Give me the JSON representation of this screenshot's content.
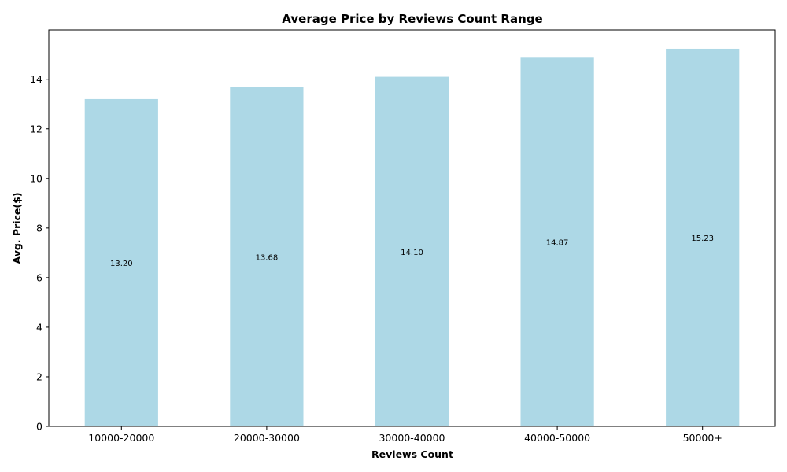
{
  "chart_data": {
    "type": "bar",
    "title": "Average Price by Reviews Count Range",
    "xlabel": "Reviews Count",
    "ylabel": "Avg. Price($)",
    "categories": [
      "10000-20000",
      "20000-30000",
      "30000-40000",
      "40000-50000",
      "50000+"
    ],
    "values": [
      13.2,
      13.68,
      14.1,
      14.87,
      15.23
    ],
    "data_labels": [
      "13.20",
      "13.68",
      "14.10",
      "14.87",
      "15.23"
    ],
    "ylim": [
      0,
      15.99
    ],
    "yticks": [
      0,
      2,
      4,
      6,
      8,
      10,
      12,
      14
    ],
    "ytick_labels": [
      "0",
      "2",
      "4",
      "6",
      "8",
      "10",
      "12",
      "14"
    ],
    "bar_color": "#add8e6",
    "grid": false,
    "legend": "none"
  }
}
